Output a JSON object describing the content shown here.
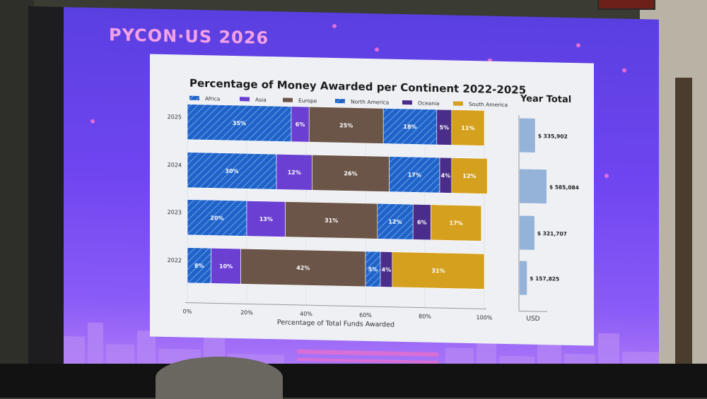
{
  "slide": {
    "logo_text": "PYCON·US 2026"
  },
  "colors": {
    "Africa": "#1f63c9",
    "Asia": "#6a3fd1",
    "Europe": "#6b5448",
    "North America": "#1f63c9",
    "Oceania": "#4a2d8a",
    "South America": "#d4a01e",
    "year_total_bar": "#95b2d9"
  },
  "chart_data": [
    {
      "type": "bar",
      "orientation": "horizontal",
      "stacked": true,
      "title": "Percentage of Money Awarded per Continent 2022-2025",
      "xlabel": "Percentage of Total Funds Awarded",
      "ylabel": "",
      "xlim": [
        0,
        100
      ],
      "x_ticks": [
        "0%",
        "20%",
        "40%",
        "60%",
        "80%",
        "100%"
      ],
      "legend_position": "top",
      "categories": [
        "2025",
        "2024",
        "2023",
        "2022"
      ],
      "series": [
        {
          "name": "Africa",
          "hatched": true,
          "values": [
            35,
            30,
            20,
            8
          ],
          "labels": [
            "35%",
            "30%",
            "20%",
            "8%"
          ]
        },
        {
          "name": "Asia",
          "hatched": false,
          "values": [
            6,
            12,
            13,
            10
          ],
          "labels": [
            "6%",
            "12%",
            "13%",
            "10%"
          ]
        },
        {
          "name": "Europe",
          "hatched": false,
          "values": [
            25,
            26,
            31,
            42
          ],
          "labels": [
            "25%",
            "26%",
            "31%",
            "42%"
          ]
        },
        {
          "name": "North America",
          "hatched": true,
          "values": [
            18,
            17,
            12,
            5
          ],
          "labels": [
            "18%",
            "17%",
            "12%",
            "5%"
          ]
        },
        {
          "name": "Oceania",
          "hatched": false,
          "values": [
            5,
            4,
            6,
            4
          ],
          "labels": [
            "5%",
            "4%",
            "6%",
            "4%"
          ]
        },
        {
          "name": "South America",
          "hatched": false,
          "values": [
            11,
            12,
            17,
            31
          ],
          "labels": [
            "11%",
            "12%",
            "17%",
            "31%"
          ]
        }
      ]
    },
    {
      "type": "bar",
      "orientation": "horizontal",
      "title": "Year Total",
      "xlabel": "USD",
      "categories": [
        "2025",
        "2024",
        "2023",
        "2022"
      ],
      "values": [
        335902,
        585084,
        321707,
        157825
      ],
      "labels": [
        "$ 335,902",
        "$ 585,084",
        "$ 321,707",
        "$ 157,825"
      ]
    }
  ]
}
